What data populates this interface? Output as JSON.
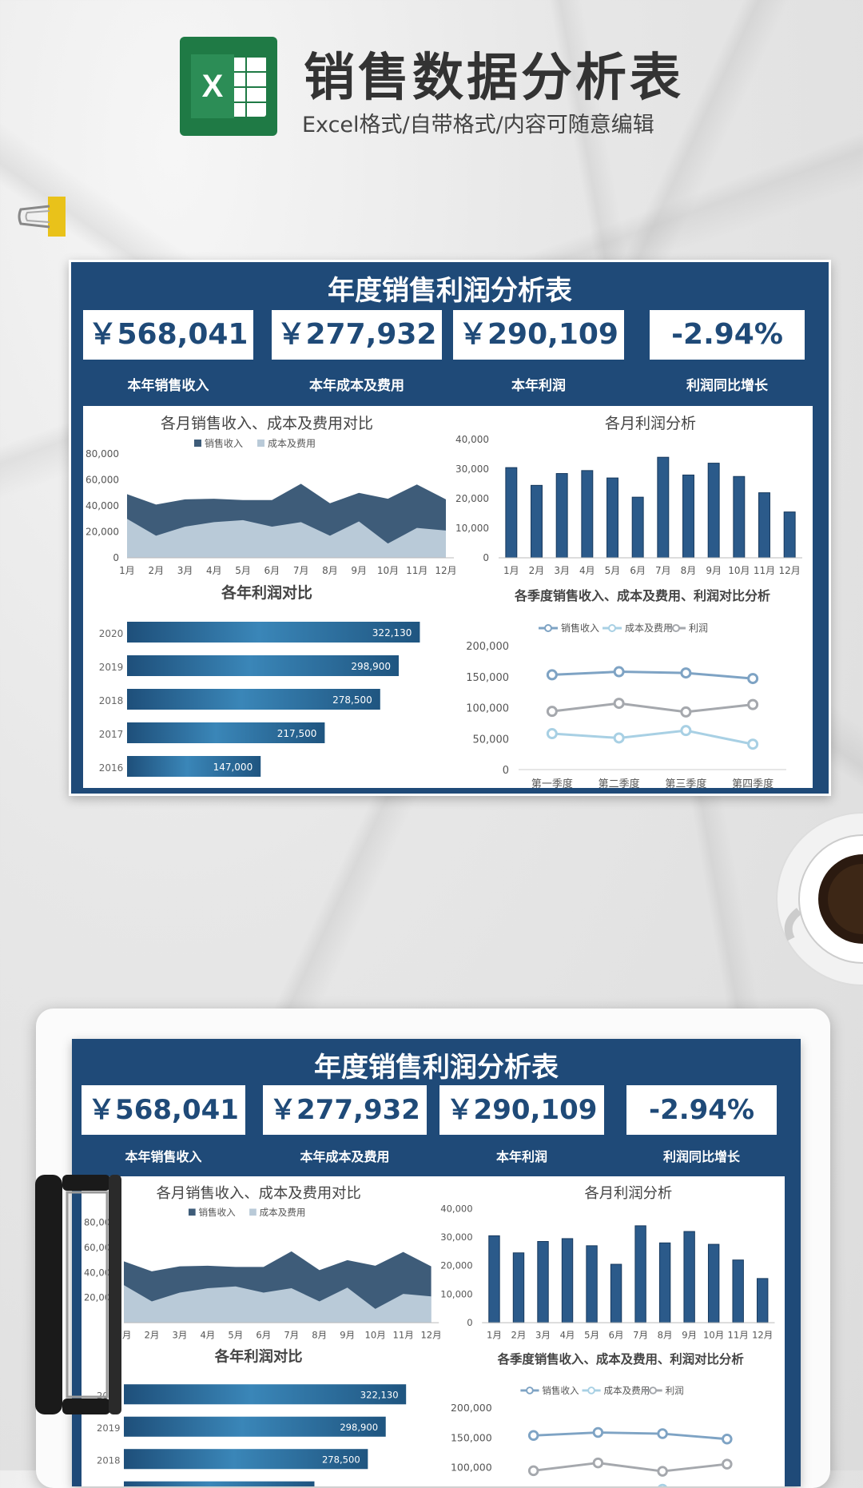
{
  "header": {
    "title": "销售数据分析表",
    "subtitle": "Excel格式/自带格式/内容可随意编辑",
    "logo_letter": "X"
  },
  "sheet": {
    "title": "年度销售利润分析表",
    "kpis": [
      {
        "value": "￥568,041",
        "label": "本年销售收入"
      },
      {
        "value": "￥277,932",
        "label": "本年成本及费用"
      },
      {
        "value": "￥290,109",
        "label": "本年利润"
      },
      {
        "value": "-2.94%",
        "label": "利润同比增长"
      }
    ],
    "colors": {
      "navy": "#1f4a78",
      "revenue": "#3e5c79",
      "cost": "#b9cad8",
      "bar": "#2b5a8a",
      "q_rev": "#7ea3c4",
      "q_cost": "#a8d0e4",
      "q_profit": "#a5a8ad"
    }
  },
  "chart_data": [
    {
      "type": "area",
      "title": "各月销售收入、成本及费用对比",
      "categories": [
        "1月",
        "2月",
        "3月",
        "4月",
        "5月",
        "6月",
        "7月",
        "8月",
        "9月",
        "10月",
        "11月",
        "12月"
      ],
      "ylim": [
        0,
        80000
      ],
      "yticks": [
        "0",
        "20,000",
        "40,000",
        "60,000",
        "80,000"
      ],
      "legend_position": "top",
      "series": [
        {
          "name": "销售收入",
          "values": [
            49000,
            41000,
            45000,
            45500,
            44500,
            44500,
            57000,
            42000,
            50000,
            45500,
            56500,
            45000
          ]
        },
        {
          "name": "成本及费用",
          "values": [
            30000,
            17000,
            24000,
            27500,
            29000,
            24000,
            27500,
            17000,
            28000,
            11000,
            23000,
            21000
          ]
        }
      ]
    },
    {
      "type": "bar",
      "title": "各月利润分析",
      "categories": [
        "1月",
        "2月",
        "3月",
        "4月",
        "5月",
        "6月",
        "7月",
        "8月",
        "9月",
        "10月",
        "11月",
        "12月"
      ],
      "ylim": [
        0,
        40000
      ],
      "yticks": [
        "0",
        "10,000",
        "20,000",
        "30,000",
        "40,000"
      ],
      "values": [
        30500,
        24500,
        28500,
        29500,
        27000,
        20500,
        34000,
        28000,
        32000,
        27500,
        22000,
        15500
      ]
    },
    {
      "type": "bar",
      "title": "各年利润对比",
      "categories": [
        "2020",
        "2019",
        "2018",
        "2017",
        "2016"
      ],
      "values": [
        322130,
        298900,
        278500,
        217500,
        147000
      ],
      "labels": [
        "322,130",
        "298,900",
        "278,500",
        "217,500",
        "147,000"
      ],
      "xlim": [
        0,
        400000
      ]
    },
    {
      "type": "line",
      "title": "各季度销售收入、成本及费用、利润对比分析",
      "categories": [
        "第一季度",
        "第二季度",
        "第三季度",
        "第四季度"
      ],
      "ylim": [
        0,
        200000
      ],
      "yticks": [
        "0",
        "50,000",
        "100,000",
        "150,000",
        "200,000"
      ],
      "legend_position": "top",
      "series": [
        {
          "name": "销售收入",
          "values": [
            153000,
            158000,
            156000,
            147000
          ]
        },
        {
          "name": "成本及费用",
          "values": [
            58000,
            51000,
            63000,
            41000
          ]
        },
        {
          "name": "利润",
          "values": [
            94000,
            107000,
            93000,
            105000
          ]
        }
      ]
    }
  ]
}
